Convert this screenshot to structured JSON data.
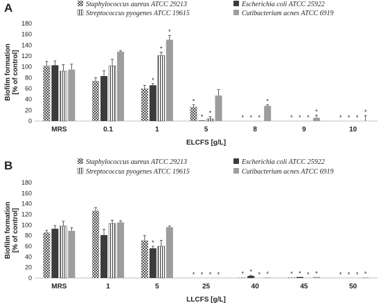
{
  "chart_data": [
    {
      "type": "bar",
      "panel": "A",
      "categories": [
        "MRS",
        "0.1",
        "1",
        "5",
        "8",
        "9",
        "10"
      ],
      "xlabel": "ELCFS [g/L]",
      "ylabel": "Biofilm formation\n[% of  control]",
      "ylim": [
        0,
        180
      ],
      "yticks": [
        0,
        20,
        40,
        60,
        80,
        100,
        120,
        140,
        160,
        180
      ],
      "grid": false,
      "legend_position": "top",
      "series": [
        {
          "name": "Staphylococcus aureus ATCC 29213",
          "values": [
            102,
            74,
            60,
            26,
            0,
            0,
            0
          ],
          "errors": [
            8,
            6,
            6,
            4,
            0,
            0,
            0
          ],
          "sig": [
            false,
            false,
            false,
            true,
            true,
            true,
            true
          ]
        },
        {
          "name": "Escherichia coli ATCC 25922",
          "values": [
            103,
            83,
            66,
            1,
            0,
            0,
            0
          ],
          "errors": [
            8,
            10,
            3,
            0,
            0,
            0,
            0
          ],
          "sig": [
            false,
            false,
            true,
            true,
            true,
            true,
            true
          ]
        },
        {
          "name": "Streptococcus pyogenes ATCC 19615",
          "values": [
            92,
            102,
            121,
            4,
            0,
            0,
            0
          ],
          "errors": [
            12,
            12,
            6,
            4,
            0,
            0,
            0
          ],
          "sig": [
            false,
            false,
            true,
            true,
            true,
            true,
            true
          ]
        },
        {
          "name": "Cutibacterium acnes ATCC 6919",
          "values": [
            95,
            128,
            150,
            47,
            28,
            6,
            0
          ],
          "errors": [
            10,
            2,
            8,
            11,
            2,
            5,
            10
          ],
          "sig": [
            false,
            false,
            true,
            false,
            true,
            true,
            true
          ]
        }
      ]
    },
    {
      "type": "bar",
      "panel": "B",
      "categories": [
        "MRS",
        "1",
        "5",
        "25",
        "40",
        "45",
        "50"
      ],
      "xlabel": "LLCFS [g/L]",
      "ylabel": "Biofilm formation\n[% of  control]",
      "ylim": [
        0,
        180
      ],
      "yticks": [
        0,
        20,
        40,
        60,
        80,
        100,
        120,
        140,
        160,
        180
      ],
      "grid": false,
      "legend_position": "top",
      "series": [
        {
          "name": "Staphylococcus aureus ATCC 29213",
          "values": [
            86,
            127,
            71,
            0,
            1,
            1,
            0
          ],
          "errors": [
            4,
            6,
            9,
            0,
            0,
            0,
            0
          ],
          "sig": [
            false,
            false,
            false,
            true,
            true,
            true,
            true
          ]
        },
        {
          "name": "Escherichia coli ATCC 25922",
          "values": [
            93,
            81,
            56,
            0,
            4,
            2,
            0
          ],
          "errors": [
            6,
            11,
            4,
            0,
            1,
            0,
            0
          ],
          "sig": [
            false,
            false,
            true,
            true,
            true,
            true,
            true
          ]
        },
        {
          "name": "Streptococcus pyogenes ATCC 19615",
          "values": [
            98,
            103,
            60,
            0,
            0,
            0,
            0
          ],
          "errors": [
            9,
            6,
            11,
            0,
            0,
            0,
            0
          ],
          "sig": [
            false,
            false,
            false,
            true,
            true,
            true,
            true
          ]
        },
        {
          "name": "Cutibacterium acnes ATCC 6919",
          "values": [
            89,
            105,
            96,
            0,
            1,
            2,
            1
          ],
          "errors": [
            6,
            3,
            2,
            0,
            0,
            0,
            0
          ],
          "sig": [
            false,
            false,
            false,
            true,
            true,
            true,
            true
          ]
        }
      ]
    }
  ],
  "patterns": {
    "series0": "checker-hatch",
    "series1": "solid",
    "series2": "vertical-stripes",
    "series3": "solid"
  },
  "colors": {
    "series0_dark": "#555555",
    "series0_light": "#d8d8d8",
    "series1": "#3b3b3b",
    "series2_stripe": "#444444",
    "series3": "#9d9d9d",
    "axis": "#bfbfbf",
    "errorbar": "#333333"
  }
}
